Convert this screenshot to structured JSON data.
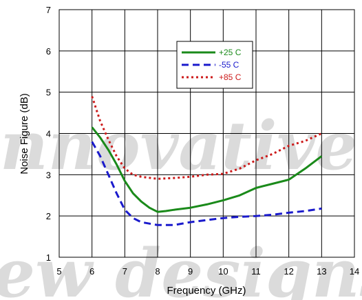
{
  "chart_data": {
    "type": "line",
    "xlabel": "Frequency (GHz)",
    "ylabel": "Noise Figure (dB)",
    "xlim": [
      5,
      14
    ],
    "ylim": [
      1,
      7
    ],
    "xticks": [
      "5",
      "6",
      "7",
      "8",
      "9",
      "10",
      "11",
      "12",
      "13",
      "14"
    ],
    "yticks": [
      "1",
      "2",
      "3",
      "4",
      "5",
      "6",
      "7"
    ],
    "grid": true,
    "legend_position": "upper-center",
    "series": [
      {
        "name": "+25 C",
        "color": "#1a8a1a",
        "style": "solid",
        "x": [
          6.0,
          6.25,
          6.5,
          6.75,
          7.0,
          7.25,
          7.5,
          7.75,
          8.0,
          8.25,
          8.5,
          9.0,
          9.5,
          10.0,
          10.5,
          11.0,
          11.5,
          12.0,
          12.5,
          13.0
        ],
        "y": [
          4.15,
          3.9,
          3.6,
          3.25,
          2.85,
          2.55,
          2.35,
          2.2,
          2.1,
          2.12,
          2.15,
          2.2,
          2.28,
          2.38,
          2.5,
          2.68,
          2.78,
          2.88,
          3.15,
          3.45
        ]
      },
      {
        "name": "-55 C",
        "color": "#1a1acc",
        "style": "dashed",
        "x": [
          6.0,
          6.25,
          6.5,
          6.75,
          7.0,
          7.25,
          7.5,
          8.0,
          8.5,
          9.0,
          9.5,
          10.0,
          10.5,
          11.0,
          11.5,
          12.0,
          12.5,
          13.0
        ],
        "y": [
          3.8,
          3.45,
          3.0,
          2.55,
          2.15,
          1.95,
          1.85,
          1.78,
          1.78,
          1.85,
          1.9,
          1.95,
          1.98,
          2.0,
          2.03,
          2.08,
          2.12,
          2.18
        ]
      },
      {
        "name": "+85 C",
        "color": "#cc1a1a",
        "style": "dotted",
        "x": [
          6.0,
          6.25,
          6.5,
          6.75,
          7.0,
          7.25,
          7.5,
          8.0,
          8.5,
          9.0,
          9.5,
          10.0,
          10.5,
          11.0,
          11.5,
          12.0,
          12.5,
          13.0
        ],
        "y": [
          4.9,
          4.3,
          3.85,
          3.45,
          3.15,
          3.0,
          2.95,
          2.9,
          2.92,
          2.95,
          3.0,
          3.02,
          3.15,
          3.35,
          3.5,
          3.7,
          3.82,
          4.0
        ]
      }
    ]
  },
  "watermark": {
    "line1": "nnovative",
    "line2": "ew designs"
  }
}
